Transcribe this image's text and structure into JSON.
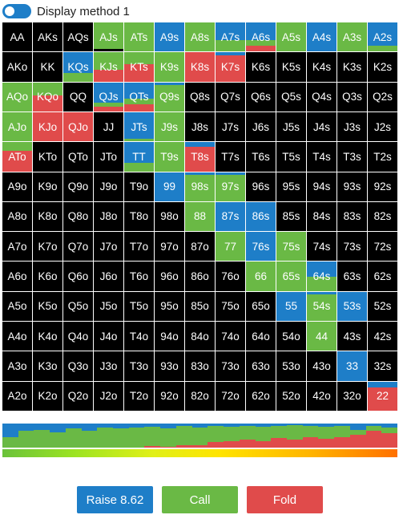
{
  "toggle": {
    "label": "Display method 1",
    "on": true
  },
  "colors": {
    "raise": "#1e7ec8",
    "call": "#6ab945",
    "fold": "#e04b4b",
    "empty": "#000000"
  },
  "grid": {
    "cells": [
      {
        "l": "AA",
        "r": 0,
        "c": 0,
        "f": 0
      },
      {
        "l": "AKs",
        "r": 0,
        "c": 0,
        "f": 0
      },
      {
        "l": "AQs",
        "r": 0,
        "c": 0,
        "f": 0
      },
      {
        "l": "AJs",
        "r": 0,
        "c": 0.9,
        "f": 0
      },
      {
        "l": "ATs",
        "r": 0,
        "c": 1,
        "f": 0
      },
      {
        "l": "A9s",
        "r": 1,
        "c": 0,
        "f": 0
      },
      {
        "l": "A8s",
        "r": 0,
        "c": 1,
        "f": 0
      },
      {
        "l": "A7s",
        "r": 0.6,
        "c": 0.4,
        "f": 0
      },
      {
        "l": "A6s",
        "r": 0.6,
        "c": 0.2,
        "f": 0.2
      },
      {
        "l": "A5s",
        "r": 0,
        "c": 1,
        "f": 0
      },
      {
        "l": "A4s",
        "r": 1,
        "c": 0,
        "f": 0
      },
      {
        "l": "A3s",
        "r": 0,
        "c": 1,
        "f": 0
      },
      {
        "l": "A2s",
        "r": 0.8,
        "c": 0.2,
        "f": 0
      },
      {
        "l": "AKo",
        "r": 0,
        "c": 0,
        "f": 0
      },
      {
        "l": "KK",
        "r": 0,
        "c": 0,
        "f": 0
      },
      {
        "l": "KQs",
        "r": 0.7,
        "c": 0.3,
        "f": 0
      },
      {
        "l": "KJs",
        "r": 0,
        "c": 0.6,
        "f": 0.4
      },
      {
        "l": "KTs",
        "r": 0,
        "c": 0.4,
        "f": 0.6
      },
      {
        "l": "K9s",
        "r": 0,
        "c": 1,
        "f": 0
      },
      {
        "l": "K8s",
        "r": 0,
        "c": 0,
        "f": 1
      },
      {
        "l": "K7s",
        "r": 0.1,
        "c": 0,
        "f": 0.9
      },
      {
        "l": "K6s",
        "r": 0,
        "c": 0,
        "f": 0
      },
      {
        "l": "K5s",
        "r": 0,
        "c": 0,
        "f": 0
      },
      {
        "l": "K4s",
        "r": 0,
        "c": 0,
        "f": 0
      },
      {
        "l": "K3s",
        "r": 0,
        "c": 0,
        "f": 0
      },
      {
        "l": "K2s",
        "r": 0,
        "c": 0,
        "f": 0
      },
      {
        "l": "AQo",
        "r": 0,
        "c": 1,
        "f": 0
      },
      {
        "l": "KQo",
        "r": 0,
        "c": 0.45,
        "f": 0.55
      },
      {
        "l": "QQ",
        "r": 0,
        "c": 0,
        "f": 0
      },
      {
        "l": "QJs",
        "r": 0.7,
        "c": 0.15,
        "f": 0.15
      },
      {
        "l": "QTs",
        "r": 0.55,
        "c": 0.2,
        "f": 0.25
      },
      {
        "l": "Q9s",
        "r": 0.1,
        "c": 0.9,
        "f": 0
      },
      {
        "l": "Q8s",
        "r": 0,
        "c": 0,
        "f": 0
      },
      {
        "l": "Q7s",
        "r": 0,
        "c": 0,
        "f": 0
      },
      {
        "l": "Q6s",
        "r": 0,
        "c": 0,
        "f": 0
      },
      {
        "l": "Q5s",
        "r": 0,
        "c": 0,
        "f": 0
      },
      {
        "l": "Q4s",
        "r": 0,
        "c": 0,
        "f": 0
      },
      {
        "l": "Q3s",
        "r": 0,
        "c": 0,
        "f": 0
      },
      {
        "l": "Q2s",
        "r": 0,
        "c": 0,
        "f": 0
      },
      {
        "l": "AJo",
        "r": 0,
        "c": 1,
        "f": 0
      },
      {
        "l": "KJo",
        "r": 0,
        "c": 0,
        "f": 1
      },
      {
        "l": "QJo",
        "r": 0,
        "c": 0,
        "f": 1
      },
      {
        "l": "JJ",
        "r": 0,
        "c": 0,
        "f": 0
      },
      {
        "l": "JTs",
        "r": 0.9,
        "c": 0.1,
        "f": 0
      },
      {
        "l": "J9s",
        "r": 0,
        "c": 1,
        "f": 0
      },
      {
        "l": "J8s",
        "r": 0,
        "c": 0,
        "f": 0
      },
      {
        "l": "J7s",
        "r": 0,
        "c": 0,
        "f": 0
      },
      {
        "l": "J6s",
        "r": 0,
        "c": 0,
        "f": 0
      },
      {
        "l": "J5s",
        "r": 0,
        "c": 0,
        "f": 0
      },
      {
        "l": "J4s",
        "r": 0,
        "c": 0,
        "f": 0
      },
      {
        "l": "J3s",
        "r": 0,
        "c": 0,
        "f": 0
      },
      {
        "l": "J2s",
        "r": 0,
        "c": 0,
        "f": 0
      },
      {
        "l": "ATo",
        "r": 0,
        "c": 0.3,
        "f": 0.7
      },
      {
        "l": "KTo",
        "r": 0,
        "c": 0,
        "f": 0
      },
      {
        "l": "QTo",
        "r": 0,
        "c": 0,
        "f": 0
      },
      {
        "l": "JTo",
        "r": 0,
        "c": 0,
        "f": 0
      },
      {
        "l": "TT",
        "r": 0.7,
        "c": 0.3,
        "f": 0
      },
      {
        "l": "T9s",
        "r": 0,
        "c": 1,
        "f": 0
      },
      {
        "l": "T8s",
        "r": 0.15,
        "c": 0,
        "f": 0.85
      },
      {
        "l": "T7s",
        "r": 0,
        "c": 0,
        "f": 0
      },
      {
        "l": "T6s",
        "r": 0,
        "c": 0,
        "f": 0
      },
      {
        "l": "T5s",
        "r": 0,
        "c": 0,
        "f": 0
      },
      {
        "l": "T4s",
        "r": 0,
        "c": 0,
        "f": 0
      },
      {
        "l": "T3s",
        "r": 0,
        "c": 0,
        "f": 0
      },
      {
        "l": "T2s",
        "r": 0,
        "c": 0,
        "f": 0
      },
      {
        "l": "A9o",
        "r": 0,
        "c": 0,
        "f": 0
      },
      {
        "l": "K9o",
        "r": 0,
        "c": 0,
        "f": 0
      },
      {
        "l": "Q9o",
        "r": 0,
        "c": 0,
        "f": 0
      },
      {
        "l": "J9o",
        "r": 0,
        "c": 0,
        "f": 0
      },
      {
        "l": "T9o",
        "r": 0,
        "c": 0,
        "f": 0
      },
      {
        "l": "99",
        "r": 1,
        "c": 0,
        "f": 0
      },
      {
        "l": "98s",
        "r": 0.1,
        "c": 0.9,
        "f": 0
      },
      {
        "l": "97s",
        "r": 0.1,
        "c": 0.9,
        "f": 0
      },
      {
        "l": "96s",
        "r": 0,
        "c": 0,
        "f": 0
      },
      {
        "l": "95s",
        "r": 0,
        "c": 0,
        "f": 0
      },
      {
        "l": "94s",
        "r": 0,
        "c": 0,
        "f": 0
      },
      {
        "l": "93s",
        "r": 0,
        "c": 0,
        "f": 0
      },
      {
        "l": "92s",
        "r": 0,
        "c": 0,
        "f": 0
      },
      {
        "l": "A8o",
        "r": 0,
        "c": 0,
        "f": 0
      },
      {
        "l": "K8o",
        "r": 0,
        "c": 0,
        "f": 0
      },
      {
        "l": "Q8o",
        "r": 0,
        "c": 0,
        "f": 0
      },
      {
        "l": "J8o",
        "r": 0,
        "c": 0,
        "f": 0
      },
      {
        "l": "T8o",
        "r": 0,
        "c": 0,
        "f": 0
      },
      {
        "l": "98o",
        "r": 0,
        "c": 0,
        "f": 0
      },
      {
        "l": "88",
        "r": 0,
        "c": 1,
        "f": 0
      },
      {
        "l": "87s",
        "r": 1,
        "c": 0,
        "f": 0
      },
      {
        "l": "86s",
        "r": 1,
        "c": 0,
        "f": 0
      },
      {
        "l": "85s",
        "r": 0,
        "c": 0,
        "f": 0
      },
      {
        "l": "84s",
        "r": 0,
        "c": 0,
        "f": 0
      },
      {
        "l": "83s",
        "r": 0,
        "c": 0,
        "f": 0
      },
      {
        "l": "82s",
        "r": 0,
        "c": 0,
        "f": 0
      },
      {
        "l": "A7o",
        "r": 0,
        "c": 0,
        "f": 0
      },
      {
        "l": "K7o",
        "r": 0,
        "c": 0,
        "f": 0
      },
      {
        "l": "Q7o",
        "r": 0,
        "c": 0,
        "f": 0
      },
      {
        "l": "J7o",
        "r": 0,
        "c": 0,
        "f": 0
      },
      {
        "l": "T7o",
        "r": 0,
        "c": 0,
        "f": 0
      },
      {
        "l": "97o",
        "r": 0,
        "c": 0,
        "f": 0
      },
      {
        "l": "87o",
        "r": 0,
        "c": 0,
        "f": 0
      },
      {
        "l": "77",
        "r": 0,
        "c": 1,
        "f": 0
      },
      {
        "l": "76s",
        "r": 1,
        "c": 0,
        "f": 0
      },
      {
        "l": "75s",
        "r": 0,
        "c": 1,
        "f": 0
      },
      {
        "l": "74s",
        "r": 0,
        "c": 0,
        "f": 0
      },
      {
        "l": "73s",
        "r": 0,
        "c": 0,
        "f": 0
      },
      {
        "l": "72s",
        "r": 0,
        "c": 0,
        "f": 0
      },
      {
        "l": "A6o",
        "r": 0,
        "c": 0,
        "f": 0
      },
      {
        "l": "K6o",
        "r": 0,
        "c": 0,
        "f": 0
      },
      {
        "l": "Q6o",
        "r": 0,
        "c": 0,
        "f": 0
      },
      {
        "l": "J6o",
        "r": 0,
        "c": 0,
        "f": 0
      },
      {
        "l": "T6o",
        "r": 0,
        "c": 0,
        "f": 0
      },
      {
        "l": "96o",
        "r": 0,
        "c": 0,
        "f": 0
      },
      {
        "l": "86o",
        "r": 0,
        "c": 0,
        "f": 0
      },
      {
        "l": "76o",
        "r": 0,
        "c": 0,
        "f": 0
      },
      {
        "l": "66",
        "r": 0,
        "c": 1,
        "f": 0
      },
      {
        "l": "65s",
        "r": 0,
        "c": 1,
        "f": 0
      },
      {
        "l": "64s",
        "r": 0.5,
        "c": 0.5,
        "f": 0
      },
      {
        "l": "63s",
        "r": 0,
        "c": 0,
        "f": 0
      },
      {
        "l": "62s",
        "r": 0,
        "c": 0,
        "f": 0
      },
      {
        "l": "A5o",
        "r": 0,
        "c": 0,
        "f": 0
      },
      {
        "l": "K5o",
        "r": 0,
        "c": 0,
        "f": 0
      },
      {
        "l": "Q5o",
        "r": 0,
        "c": 0,
        "f": 0
      },
      {
        "l": "J5o",
        "r": 0,
        "c": 0,
        "f": 0
      },
      {
        "l": "T5o",
        "r": 0,
        "c": 0,
        "f": 0
      },
      {
        "l": "95o",
        "r": 0,
        "c": 0,
        "f": 0
      },
      {
        "l": "85o",
        "r": 0,
        "c": 0,
        "f": 0
      },
      {
        "l": "75o",
        "r": 0,
        "c": 0,
        "f": 0
      },
      {
        "l": "65o",
        "r": 0,
        "c": 0,
        "f": 0
      },
      {
        "l": "55",
        "r": 1,
        "c": 0,
        "f": 0
      },
      {
        "l": "54s",
        "r": 0.1,
        "c": 0.9,
        "f": 0
      },
      {
        "l": "53s",
        "r": 1,
        "c": 0,
        "f": 0
      },
      {
        "l": "52s",
        "r": 0,
        "c": 0,
        "f": 0
      },
      {
        "l": "A4o",
        "r": 0,
        "c": 0,
        "f": 0
      },
      {
        "l": "K4o",
        "r": 0,
        "c": 0,
        "f": 0
      },
      {
        "l": "Q4o",
        "r": 0,
        "c": 0,
        "f": 0
      },
      {
        "l": "J4o",
        "r": 0,
        "c": 0,
        "f": 0
      },
      {
        "l": "T4o",
        "r": 0,
        "c": 0,
        "f": 0
      },
      {
        "l": "94o",
        "r": 0,
        "c": 0,
        "f": 0
      },
      {
        "l": "84o",
        "r": 0,
        "c": 0,
        "f": 0
      },
      {
        "l": "74o",
        "r": 0,
        "c": 0,
        "f": 0
      },
      {
        "l": "64o",
        "r": 0,
        "c": 0,
        "f": 0
      },
      {
        "l": "54o",
        "r": 0,
        "c": 0,
        "f": 0
      },
      {
        "l": "44",
        "r": 0,
        "c": 1,
        "f": 0
      },
      {
        "l": "43s",
        "r": 0,
        "c": 0,
        "f": 0
      },
      {
        "l": "42s",
        "r": 0,
        "c": 0,
        "f": 0
      },
      {
        "l": "A3o",
        "r": 0,
        "c": 0,
        "f": 0
      },
      {
        "l": "K3o",
        "r": 0,
        "c": 0,
        "f": 0
      },
      {
        "l": "Q3o",
        "r": 0,
        "c": 0,
        "f": 0
      },
      {
        "l": "J3o",
        "r": 0,
        "c": 0,
        "f": 0
      },
      {
        "l": "T3o",
        "r": 0,
        "c": 0,
        "f": 0
      },
      {
        "l": "93o",
        "r": 0,
        "c": 0,
        "f": 0
      },
      {
        "l": "83o",
        "r": 0,
        "c": 0,
        "f": 0
      },
      {
        "l": "73o",
        "r": 0,
        "c": 0,
        "f": 0
      },
      {
        "l": "63o",
        "r": 0,
        "c": 0,
        "f": 0
      },
      {
        "l": "53o",
        "r": 0,
        "c": 0,
        "f": 0
      },
      {
        "l": "43o",
        "r": 0,
        "c": 0,
        "f": 0
      },
      {
        "l": "33",
        "r": 1,
        "c": 0,
        "f": 0
      },
      {
        "l": "32s",
        "r": 0,
        "c": 0,
        "f": 0
      },
      {
        "l": "A2o",
        "r": 0,
        "c": 0,
        "f": 0
      },
      {
        "l": "K2o",
        "r": 0,
        "c": 0,
        "f": 0
      },
      {
        "l": "Q2o",
        "r": 0,
        "c": 0,
        "f": 0
      },
      {
        "l": "J2o",
        "r": 0,
        "c": 0,
        "f": 0
      },
      {
        "l": "T2o",
        "r": 0,
        "c": 0,
        "f": 0
      },
      {
        "l": "92o",
        "r": 0,
        "c": 0,
        "f": 0
      },
      {
        "l": "82o",
        "r": 0,
        "c": 0,
        "f": 0
      },
      {
        "l": "72o",
        "r": 0,
        "c": 0,
        "f": 0
      },
      {
        "l": "62o",
        "r": 0,
        "c": 0,
        "f": 0
      },
      {
        "l": "52o",
        "r": 0,
        "c": 0,
        "f": 0
      },
      {
        "l": "42o",
        "r": 0,
        "c": 0,
        "f": 0
      },
      {
        "l": "32o",
        "r": 0,
        "c": 0,
        "f": 0
      },
      {
        "l": "22",
        "r": 0.2,
        "c": 0,
        "f": 0.8
      }
    ]
  },
  "distribution": {
    "segments": [
      {
        "r": 0.55,
        "c": 0.45,
        "f": 0
      },
      {
        "r": 0.3,
        "c": 0.7,
        "f": 0
      },
      {
        "r": 0.25,
        "c": 0.75,
        "f": 0
      },
      {
        "r": 0.35,
        "c": 0.65,
        "f": 0
      },
      {
        "r": 0.2,
        "c": 0.8,
        "f": 0
      },
      {
        "r": 0.3,
        "c": 0.7,
        "f": 0
      },
      {
        "r": 0.15,
        "c": 0.85,
        "f": 0
      },
      {
        "r": 0.2,
        "c": 0.8,
        "f": 0
      },
      {
        "r": 0.15,
        "c": 0.85,
        "f": 0
      },
      {
        "r": 0.12,
        "c": 0.8,
        "f": 0.08
      },
      {
        "r": 0.2,
        "c": 0.75,
        "f": 0.05
      },
      {
        "r": 0.1,
        "c": 0.8,
        "f": 0.1
      },
      {
        "r": 0.15,
        "c": 0.75,
        "f": 0.1
      },
      {
        "r": 0.1,
        "c": 0.65,
        "f": 0.25
      },
      {
        "r": 0.12,
        "c": 0.6,
        "f": 0.28
      },
      {
        "r": 0.1,
        "c": 0.55,
        "f": 0.35
      },
      {
        "r": 0.12,
        "c": 0.6,
        "f": 0.28
      },
      {
        "r": 0.1,
        "c": 0.5,
        "f": 0.4
      },
      {
        "r": 0.08,
        "c": 0.6,
        "f": 0.32
      },
      {
        "r": 0.1,
        "c": 0.45,
        "f": 0.45
      },
      {
        "r": 0.12,
        "c": 0.5,
        "f": 0.38
      },
      {
        "r": 0.1,
        "c": 0.45,
        "f": 0.45
      },
      {
        "r": 0.25,
        "c": 0.2,
        "f": 0.55
      },
      {
        "r": 0.1,
        "c": 0.2,
        "f": 0.7
      },
      {
        "r": 0.15,
        "c": 0.25,
        "f": 0.6
      }
    ]
  },
  "buttons": {
    "raise": "Raise 8.62",
    "call": "Call",
    "fold": "Fold"
  }
}
